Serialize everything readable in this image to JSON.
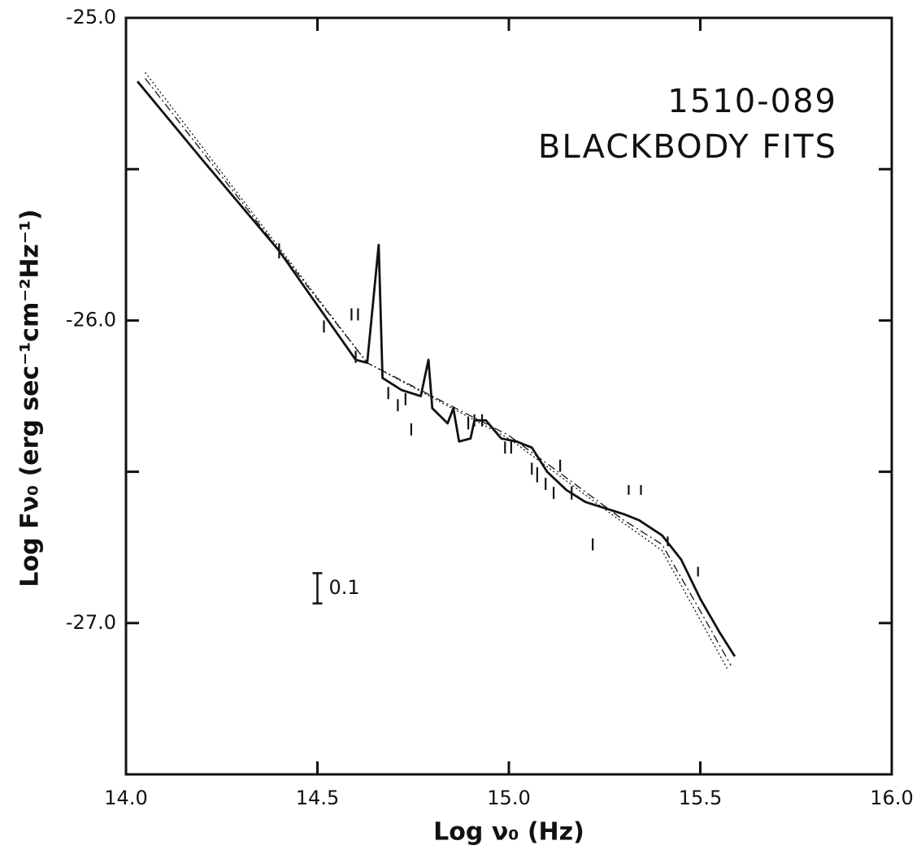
{
  "chart_data": {
    "type": "line",
    "title": "1510-089",
    "subtitle": "BLACKBODY FITS",
    "x_label": "Log ν₀ (Hz)",
    "y_label": "Log Fν₀ (erg sec⁻¹cm⁻²Hz⁻¹)",
    "xlim": [
      14.0,
      16.0
    ],
    "ylim": [
      -27.5,
      -25.0
    ],
    "xticks": [
      {
        "value": 14,
        "label": "14.0"
      },
      {
        "value": 14.5,
        "label": "14.5"
      },
      {
        "value": 15,
        "label": "15.0"
      },
      {
        "value": 15.5,
        "label": "15.5"
      },
      {
        "value": 16,
        "label": "16.0"
      }
    ],
    "yticks": [
      {
        "value": -25,
        "label": "-25.0"
      },
      {
        "value": -26,
        "label": "-26.0"
      },
      {
        "value": -27,
        "label": "-27.0"
      }
    ],
    "yminorticks": [
      -25.5,
      -26.5
    ],
    "grid": false,
    "color": "#111111",
    "series": [
      {
        "type": "line",
        "style": "solid",
        "x": [
          14.03,
          14.2,
          14.4,
          14.6,
          14.63,
          14.66,
          14.67,
          14.72,
          14.77,
          14.79,
          14.8,
          14.84,
          14.855,
          14.87,
          14.9,
          14.91,
          14.94,
          14.98,
          15.02,
          15.06,
          15.1,
          15.15,
          15.2,
          15.3,
          15.34,
          15.4,
          15.45,
          15.5,
          15.55,
          15.59
        ],
        "values": [
          -25.21,
          -25.47,
          -25.77,
          -26.13,
          -26.14,
          -25.75,
          -26.19,
          -26.23,
          -26.25,
          -26.13,
          -26.29,
          -26.34,
          -26.29,
          -26.4,
          -26.39,
          -26.33,
          -26.33,
          -26.39,
          -26.4,
          -26.42,
          -26.5,
          -26.56,
          -26.6,
          -26.64,
          -26.66,
          -26.71,
          -26.79,
          -26.92,
          -27.03,
          -27.11
        ]
      },
      {
        "type": "line",
        "style": "dashed",
        "x": [
          14.05,
          14.63,
          15.0,
          15.3,
          15.4,
          15.5,
          15.58
        ],
        "values": [
          -25.2,
          -26.14,
          -26.38,
          -26.66,
          -26.74,
          -26.96,
          -27.14
        ]
      },
      {
        "type": "line",
        "style": "dotted",
        "x": [
          14.05,
          14.63,
          15.0,
          15.3,
          15.4,
          15.5,
          15.57
        ],
        "values": [
          -25.18,
          -26.14,
          -26.39,
          -26.67,
          -26.76,
          -26.99,
          -27.15
        ]
      },
      {
        "type": "errorbar",
        "x": [
          14.4,
          14.517,
          14.589,
          14.606,
          14.6,
          14.685,
          14.71,
          14.73,
          14.745,
          14.894,
          14.91,
          14.93,
          14.99,
          15.006,
          15.06,
          15.074,
          15.096,
          15.117,
          15.134,
          15.164,
          15.219,
          15.313,
          15.345,
          15.415,
          15.494
        ],
        "values": [
          -25.77,
          -26.02,
          -25.98,
          -25.98,
          -26.12,
          -26.24,
          -26.28,
          -26.26,
          -26.36,
          -26.34,
          -26.33,
          -26.33,
          -26.42,
          -26.42,
          -26.49,
          -26.51,
          -26.54,
          -26.57,
          -26.48,
          -26.57,
          -26.74,
          -26.56,
          -26.56,
          -26.73,
          -26.83
        ],
        "errors": [
          0.025,
          0.02,
          0.02,
          0.02,
          0.02,
          0.02,
          0.02,
          0.02,
          0.02,
          0.02,
          0.02,
          0.02,
          0.02,
          0.02,
          0.02,
          0.025,
          0.02,
          0.02,
          0.02,
          0.022,
          0.02,
          0.016,
          0.016,
          0.016,
          0.016
        ]
      }
    ],
    "annotation": {
      "label": "0.1",
      "x": 14.5,
      "y": -26.885,
      "length": 0.1
    }
  }
}
